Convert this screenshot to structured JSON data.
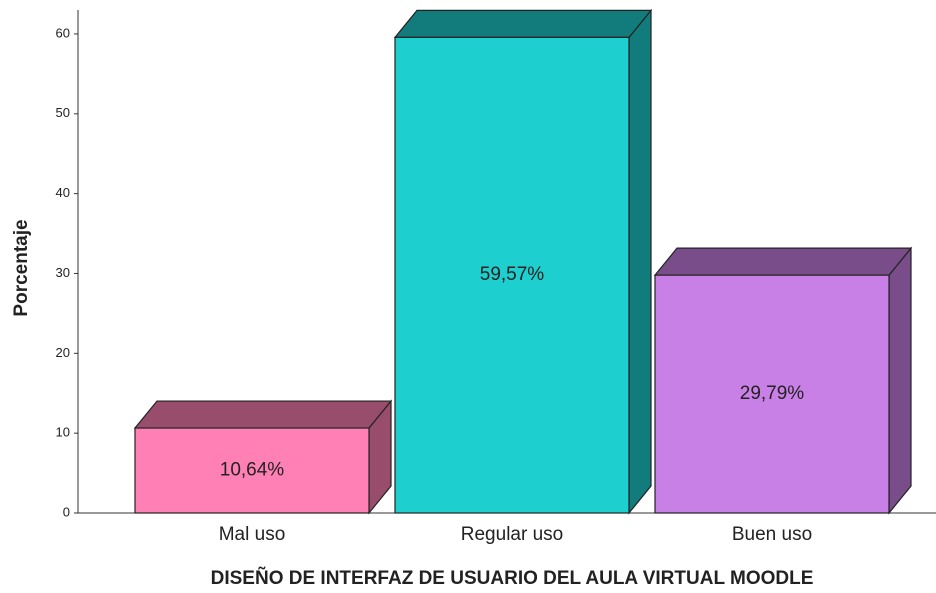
{
  "chart_data": {
    "type": "bar3d",
    "xlabel": "DISEÑO DE INTERFAZ DE USUARIO DEL AULA VIRTUAL MOODLE",
    "ylabel": "Porcentaje",
    "categories": [
      "Mal uso",
      "Regular uso",
      "Buen uso"
    ],
    "values": [
      10.64,
      59.57,
      29.79
    ],
    "value_labels": [
      "10,64%",
      "59,57%",
      "29,79%"
    ],
    "colors": [
      "#ff80b4",
      "#1ecfcf",
      "#c880e6"
    ],
    "ylim": [
      0,
      63
    ],
    "yticks": [
      0,
      10,
      20,
      30,
      40,
      50,
      60
    ],
    "grid": false
  }
}
